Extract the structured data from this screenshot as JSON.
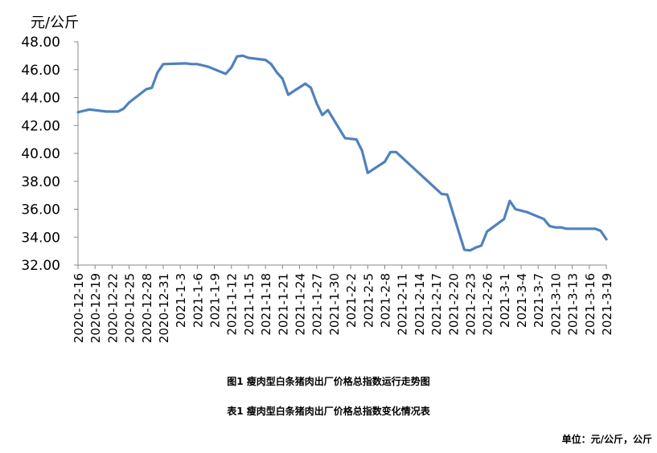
{
  "chart_data": {
    "type": "line",
    "ylabel": "元/公斤",
    "ylim": [
      32,
      48
    ],
    "y_ticks": [
      "32.00",
      "34.00",
      "36.00",
      "38.00",
      "40.00",
      "42.00",
      "44.00",
      "46.00",
      "48.00"
    ],
    "x_tick_labels": [
      "2020-12-16",
      "2020-12-19",
      "2020-12-22",
      "2020-12-25",
      "2020-12-28",
      "2020-12-31",
      "2021-1-3",
      "2021-1-6",
      "2021-1-9",
      "2021-1-12",
      "2021-1-15",
      "2021-1-18",
      "2021-1-21",
      "2021-1-24",
      "2021-1-27",
      "2021-1-30",
      "2021-2-2",
      "2021-2-5",
      "2021-2-8",
      "2021-2-11",
      "2021-2-14",
      "2021-2-17",
      "2021-2-20",
      "2021-2-23",
      "2021-2-26",
      "2021-3-1",
      "2021-3-4",
      "2021-3-7",
      "2021-3-10",
      "2021-3-13",
      "2021-3-16",
      "2021-3-19"
    ],
    "x": [
      "2020-12-16",
      "2020-12-17",
      "2020-12-18",
      "2020-12-21",
      "2020-12-22",
      "2020-12-23",
      "2020-12-24",
      "2020-12-25",
      "2020-12-28",
      "2020-12-29",
      "2020-12-30",
      "2020-12-31",
      "2021-1-4",
      "2021-1-5",
      "2021-1-6",
      "2021-1-7",
      "2021-1-8",
      "2021-1-11",
      "2021-1-12",
      "2021-1-13",
      "2021-1-14",
      "2021-1-15",
      "2021-1-18",
      "2021-1-19",
      "2021-1-20",
      "2021-1-21",
      "2021-1-22",
      "2021-1-25",
      "2021-1-26",
      "2021-1-27",
      "2021-1-28",
      "2021-1-29",
      "2021-2-1",
      "2021-2-2",
      "2021-2-3",
      "2021-2-4",
      "2021-2-5",
      "2021-2-8",
      "2021-2-9",
      "2021-2-10",
      "2021-2-18",
      "2021-2-19",
      "2021-2-22",
      "2021-2-23",
      "2021-2-24",
      "2021-2-25",
      "2021-2-26",
      "2021-3-1",
      "2021-3-2",
      "2021-3-3",
      "2021-3-4",
      "2021-3-5",
      "2021-3-8",
      "2021-3-9",
      "2021-3-10",
      "2021-3-11",
      "2021-3-12",
      "2021-3-15",
      "2021-3-16",
      "2021-3-17",
      "2021-3-18",
      "2021-3-19"
    ],
    "series": [
      {
        "values": [
          42.95,
          43.05,
          43.15,
          43.0,
          43.0,
          43.0,
          43.2,
          43.65,
          44.6,
          44.7,
          45.8,
          46.4,
          46.45,
          46.4,
          46.4,
          46.3,
          46.2,
          45.7,
          46.15,
          46.95,
          47.0,
          46.85,
          46.7,
          46.4,
          45.8,
          45.35,
          44.2,
          45.0,
          44.7,
          43.6,
          42.75,
          43.1,
          41.1,
          41.05,
          41.0,
          40.2,
          38.6,
          39.4,
          40.1,
          40.1,
          37.1,
          37.05,
          33.1,
          33.05,
          33.25,
          33.4,
          34.4,
          35.3,
          36.6,
          36.0,
          35.9,
          35.8,
          35.3,
          34.8,
          34.7,
          34.7,
          34.6,
          34.6,
          34.6,
          34.6,
          34.45,
          33.85
        ]
      }
    ],
    "line_color": "#4F81BD",
    "grid": false,
    "legend": "none"
  },
  "unit_label": "元/公斤",
  "captions": {
    "figure": "图1 瘦肉型白条猪肉出厂价格总指数运行走势图",
    "table": "表1 瘦肉型白条猪肉出厂价格总指数变化情况表"
  },
  "footer_unit": "单位：元/公斤，公斤"
}
